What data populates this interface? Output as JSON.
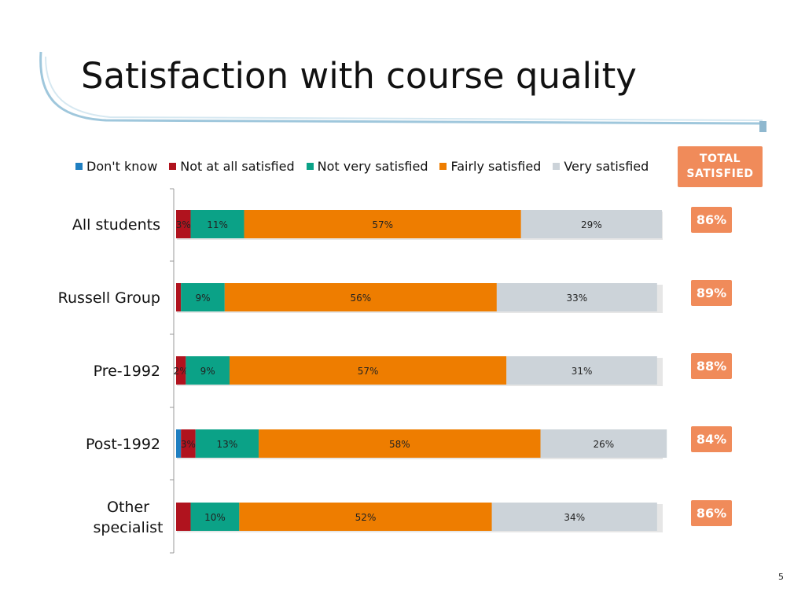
{
  "slide": {
    "title": "Satisfaction with course quality",
    "page_number": "5"
  },
  "total_header": {
    "line1": "TOTAL",
    "line2": "SATISFIED"
  },
  "chart_data": {
    "type": "bar",
    "orientation": "horizontal",
    "stacked": true,
    "categories": [
      "All students",
      "Russell Group",
      "Pre-1992",
      "Post-1992",
      "Other specialist"
    ],
    "series": [
      {
        "name": "Don't know",
        "color": "#1f7fc1",
        "values": [
          0,
          0,
          0,
          1,
          0
        ],
        "labels": [
          "",
          "",
          "",
          "",
          ""
        ]
      },
      {
        "name": "Not at all satisfied",
        "color": "#b0131e",
        "values": [
          3,
          1,
          2,
          3,
          3
        ],
        "labels": [
          "3%",
          "",
          "2%",
          "3%",
          ""
        ]
      },
      {
        "name": "Not very satisfied",
        "color": "#0ba287",
        "values": [
          11,
          9,
          9,
          13,
          10
        ],
        "labels": [
          "11%",
          "9%",
          "9%",
          "13%",
          "10%"
        ]
      },
      {
        "name": "Fairly satisfied",
        "color": "#ee7d00",
        "values": [
          57,
          56,
          57,
          58,
          52
        ],
        "labels": [
          "57%",
          "56%",
          "57%",
          "58%",
          "52%"
        ]
      },
      {
        "name": "Very satisfied",
        "color": "#ccd3d9",
        "values": [
          29,
          33,
          31,
          26,
          34
        ],
        "labels": [
          "29%",
          "33%",
          "31%",
          "26%",
          "34%"
        ]
      }
    ],
    "total_satisfied": [
      "86%",
      "89%",
      "88%",
      "84%",
      "86%"
    ],
    "xlim": [
      0,
      100
    ],
    "legend_position": "top",
    "grid": false
  }
}
